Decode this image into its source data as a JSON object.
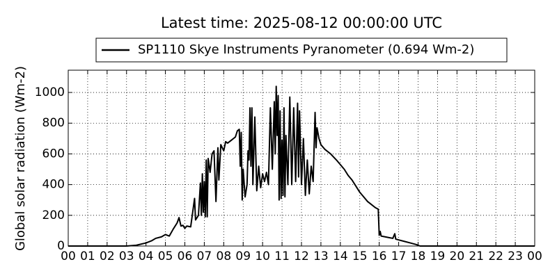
{
  "chart_data": {
    "type": "line",
    "title": "Latest time: 2025-08-12 00:00:00 UTC",
    "ylabel": "Global solar radiation (Wm-2)",
    "x": [
      0,
      3,
      3.5,
      4,
      4.3,
      4.5,
      4.8,
      5,
      5.2,
      5.4,
      5.6,
      5.7,
      5.8,
      5.9,
      6,
      6.1,
      6.3,
      6.5,
      6.55,
      6.7,
      6.8,
      6.85,
      6.9,
      6.95,
      7,
      7.05,
      7.1,
      7.15,
      7.2,
      7.3,
      7.4,
      7.5,
      7.6,
      7.7,
      7.75,
      7.85,
      8,
      8.1,
      8.2,
      8.4,
      8.6,
      8.7,
      8.8,
      8.85,
      8.9,
      8.95,
      9,
      9.1,
      9.2,
      9.25,
      9.3,
      9.35,
      9.4,
      9.45,
      9.5,
      9.6,
      9.7,
      9.8,
      9.9,
      10,
      10.1,
      10.2,
      10.3,
      10.4,
      10.5,
      10.6,
      10.65,
      10.7,
      10.75,
      10.8,
      10.85,
      10.9,
      10.95,
      11,
      11.05,
      11.1,
      11.15,
      11.2,
      11.3,
      11.4,
      11.5,
      11.6,
      11.7,
      11.8,
      11.85,
      11.9,
      12,
      12.1,
      12.2,
      12.3,
      12.4,
      12.5,
      12.6,
      12.7,
      12.75,
      12.8,
      12.9,
      13,
      13.2,
      13.5,
      13.8,
      14,
      14.2,
      14.4,
      14.6,
      14.8,
      15,
      15.2,
      15.4,
      15.6,
      15.8,
      15.95,
      16,
      16.05,
      16.1,
      16.3,
      16.5,
      16.7,
      16.8,
      16.85,
      17,
      17.3,
      17.6,
      17.9,
      18.1,
      24
    ],
    "series": [
      {
        "name": "SP1110 Skye Instruments Pyranometer (0.694 Wm-2)",
        "color": "#000000",
        "values": [
          0,
          0,
          5,
          20,
          35,
          50,
          60,
          75,
          65,
          110,
          150,
          185,
          130,
          135,
          115,
          130,
          125,
          310,
          170,
          200,
          410,
          200,
          470,
          220,
          420,
          190,
          560,
          190,
          570,
          480,
          600,
          620,
          290,
          640,
          430,
          660,
          620,
          680,
          670,
          690,
          710,
          750,
          760,
          520,
          740,
          300,
          500,
          320,
          400,
          620,
          560,
          900,
          520,
          900,
          400,
          840,
          360,
          520,
          380,
          470,
          420,
          480,
          400,
          900,
          500,
          940,
          600,
          1040,
          720,
          980,
          300,
          880,
          310,
          690,
          330,
          900,
          320,
          720,
          400,
          970,
          400,
          900,
          420,
          930,
          450,
          880,
          400,
          700,
          330,
          560,
          340,
          520,
          420,
          870,
          640,
          770,
          700,
          660,
          630,
          600,
          560,
          530,
          500,
          460,
          430,
          390,
          350,
          320,
          290,
          270,
          250,
          240,
          70,
          95,
          65,
          60,
          55,
          50,
          80,
          45,
          40,
          30,
          20,
          10,
          0,
          0
        ]
      }
    ],
    "xlim": [
      0,
      24
    ],
    "xticks": [
      {
        "value": 0,
        "label": "00"
      },
      {
        "value": 1,
        "label": "01"
      },
      {
        "value": 2,
        "label": "02"
      },
      {
        "value": 3,
        "label": "03"
      },
      {
        "value": 4,
        "label": "04"
      },
      {
        "value": 5,
        "label": "05"
      },
      {
        "value": 6,
        "label": "06"
      },
      {
        "value": 7,
        "label": "07"
      },
      {
        "value": 8,
        "label": "08"
      },
      {
        "value": 9,
        "label": "09"
      },
      {
        "value": 10,
        "label": "10"
      },
      {
        "value": 11,
        "label": "11"
      },
      {
        "value": 12,
        "label": "12"
      },
      {
        "value": 13,
        "label": "13"
      },
      {
        "value": 14,
        "label": "14"
      },
      {
        "value": 15,
        "label": "15"
      },
      {
        "value": 16,
        "label": "16"
      },
      {
        "value": 17,
        "label": "17"
      },
      {
        "value": 18,
        "label": "18"
      },
      {
        "value": 19,
        "label": "19"
      },
      {
        "value": 20,
        "label": "20"
      },
      {
        "value": 21,
        "label": "21"
      },
      {
        "value": 22,
        "label": "22"
      },
      {
        "value": 23,
        "label": "23"
      },
      {
        "value": 24,
        "label": "00"
      }
    ],
    "ylim": [
      0,
      1145
    ],
    "yticks": [
      0,
      200,
      400,
      600,
      800,
      1000
    ],
    "grid": true,
    "legend": "top"
  }
}
